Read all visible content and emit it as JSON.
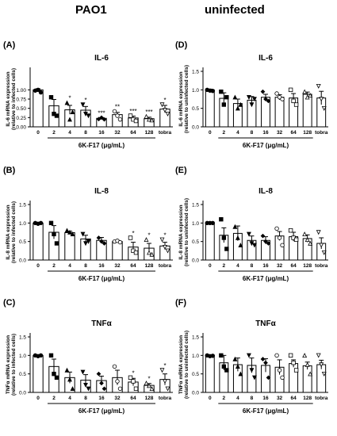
{
  "columns": {
    "left": "PAO1",
    "right": "uninfected"
  },
  "chart_data": [
    {
      "id": "A",
      "panel_label": "(A)",
      "title": "IL-6",
      "type": "bar",
      "ylabel": "IL-6 mRNA expression",
      "ylabel2": "(relative to infected cells)",
      "xlabel": "6K-F17 (μg/mL)",
      "categories": [
        "0",
        "2",
        "4",
        "8",
        "16",
        "32",
        "64",
        "128",
        "tobra"
      ],
      "values": [
        1.0,
        0.57,
        0.46,
        0.45,
        0.23,
        0.33,
        0.24,
        0.22,
        0.48
      ],
      "errors": [
        0.03,
        0.17,
        0.12,
        0.1,
        0.02,
        0.06,
        0.05,
        0.04,
        0.1
      ],
      "points": [
        [
          0.98,
          1.0,
          0.93
        ],
        [
          0.8,
          0.35,
          0.3
        ],
        [
          0.65,
          0.2,
          0.4
        ],
        [
          0.6,
          0.35,
          0.3
        ],
        [
          0.21,
          0.25,
          0.2
        ],
        [
          0.42,
          0.3,
          0.2
        ],
        [
          0.3,
          0.2,
          0.16
        ],
        [
          0.28,
          0.2,
          0.18
        ],
        [
          0.6,
          0.45,
          0.35
        ]
      ],
      "sig": [
        "",
        "",
        "*",
        "*",
        "***",
        "**",
        "***",
        "***",
        "*"
      ],
      "yticks": [
        0.0,
        0.25,
        0.5,
        0.75,
        1.0
      ],
      "ylim": [
        0,
        1.5
      ]
    },
    {
      "id": "B",
      "panel_label": "(B)",
      "title": "IL-8",
      "type": "bar",
      "ylabel": "IL-8 mRNA expression",
      "ylabel2": "(relative to infected cells)",
      "xlabel": "6K-F17 (μg/mL)",
      "categories": [
        "0",
        "2",
        "4",
        "8",
        "16",
        "32",
        "64",
        "128",
        "tobra"
      ],
      "values": [
        1.0,
        0.75,
        0.74,
        0.57,
        0.53,
        0.5,
        0.35,
        0.32,
        0.38
      ],
      "errors": [
        0.02,
        0.18,
        0.04,
        0.1,
        0.08,
        0.03,
        0.13,
        0.13,
        0.1
      ],
      "points": [
        [
          1.0,
          0.98,
          1.0
        ],
        [
          1.0,
          0.7,
          0.45
        ],
        [
          0.8,
          0.75,
          0.7
        ],
        [
          0.7,
          0.45,
          0.5
        ],
        [
          0.6,
          0.5,
          0.45
        ],
        [
          0.5,
          0.52,
          0.48
        ],
        [
          0.6,
          0.25,
          0.2
        ],
        [
          0.55,
          0.2,
          0.15
        ],
        [
          0.55,
          0.35,
          0.25
        ]
      ],
      "sig": [
        "",
        "",
        "",
        "",
        "",
        "",
        "*",
        "*",
        "*"
      ],
      "yticks": [
        0.0,
        0.5,
        1.0,
        1.5
      ],
      "ylim": [
        0,
        1.5
      ]
    },
    {
      "id": "C",
      "panel_label": "(C)",
      "title": "TNFα",
      "type": "bar",
      "ylabel": "TNFα mRNA expression",
      "ylabel2": "(relative to infected cells)",
      "xlabel": "6K-F17 (μg/mL)",
      "categories": [
        "0",
        "2",
        "4",
        "8",
        "16",
        "32",
        "64",
        "128",
        "tobra"
      ],
      "values": [
        1.0,
        0.7,
        0.4,
        0.33,
        0.32,
        0.4,
        0.28,
        0.19,
        0.35
      ],
      "errors": [
        0.02,
        0.2,
        0.15,
        0.15,
        0.12,
        0.2,
        0.1,
        0.05,
        0.15
      ],
      "points": [
        [
          1.0,
          0.98,
          1.0
        ],
        [
          1.0,
          0.5,
          0.4
        ],
        [
          0.6,
          0.35,
          0.1
        ],
        [
          0.55,
          0.2,
          0.1
        ],
        [
          0.5,
          0.25,
          0.1
        ],
        [
          0.7,
          0.3,
          0.1
        ],
        [
          0.4,
          0.3,
          0.1
        ],
        [
          0.25,
          0.18,
          0.1
        ],
        [
          0.6,
          0.3,
          0.1
        ]
      ],
      "sig": [
        "",
        "",
        "",
        "",
        "",
        "",
        "*",
        "*",
        "*"
      ],
      "yticks": [
        0.0,
        0.5,
        1.0,
        1.5
      ],
      "ylim": [
        0,
        1.5
      ]
    },
    {
      "id": "D",
      "panel_label": "(D)",
      "title": "IL-6",
      "type": "bar",
      "ylabel": "IL-6 mRNA expression",
      "ylabel2": "(relative to uninfected cells)",
      "xlabel": "6K-F17 (μg/mL)",
      "categories": [
        "0",
        "2",
        "4",
        "8",
        "16",
        "32",
        "64",
        "128",
        "tobra"
      ],
      "values": [
        1.0,
        0.77,
        0.63,
        0.72,
        0.8,
        0.8,
        0.78,
        0.88,
        0.78
      ],
      "errors": [
        0.02,
        0.15,
        0.12,
        0.1,
        0.08,
        0.07,
        0.12,
        0.06,
        0.18
      ],
      "points": [
        [
          1.0,
          0.98,
          0.97
        ],
        [
          0.95,
          0.6,
          0.8
        ],
        [
          0.8,
          0.5,
          0.6
        ],
        [
          0.8,
          0.6,
          0.75
        ],
        [
          0.95,
          0.75,
          0.7
        ],
        [
          0.9,
          0.8,
          0.75
        ],
        [
          1.0,
          0.7,
          0.6
        ],
        [
          0.95,
          0.8,
          0.85
        ],
        [
          1.1,
          0.75,
          0.5
        ]
      ],
      "sig": [
        "",
        "",
        "",
        "",
        "",
        "",
        "",
        "",
        ""
      ],
      "yticks": [
        0.0,
        0.5,
        1.0,
        1.5
      ],
      "ylim": [
        0,
        1.5
      ]
    },
    {
      "id": "E",
      "panel_label": "(E)",
      "title": "IL-8",
      "type": "bar",
      "ylabel": "IL-8 mRNA expression",
      "ylabel2": "(relative to uninfected cells)",
      "xlabel": "6K-F17 (μg/mL)",
      "categories": [
        "0",
        "2",
        "4",
        "8",
        "16",
        "32",
        "64",
        "128",
        "tobra"
      ],
      "values": [
        1.0,
        0.67,
        0.72,
        0.53,
        0.53,
        0.65,
        0.63,
        0.58,
        0.45
      ],
      "errors": [
        0.01,
        0.2,
        0.2,
        0.12,
        0.1,
        0.12,
        0.12,
        0.1,
        0.15
      ],
      "points": [
        [
          1.0,
          1.0,
          1.0
        ],
        [
          1.1,
          0.6,
          0.3
        ],
        [
          0.9,
          0.6,
          0.4
        ],
        [
          0.7,
          0.45,
          0.4
        ],
        [
          0.65,
          0.5,
          0.45
        ],
        [
          0.85,
          0.6,
          0.4
        ],
        [
          0.8,
          0.6,
          0.55
        ],
        [
          0.7,
          0.55,
          0.45
        ],
        [
          0.75,
          0.4,
          0.2
        ]
      ],
      "sig": [
        "",
        "",
        "",
        "",
        "",
        "",
        "",
        "",
        ""
      ],
      "yticks": [
        0.0,
        0.5,
        1.0,
        1.5
      ],
      "ylim": [
        0,
        1.5
      ]
    },
    {
      "id": "F",
      "panel_label": "(F)",
      "title": "TNFα",
      "type": "bar",
      "ylabel": "TNFα mRNA expression",
      "ylabel2": "(relative to uninfected cells)",
      "xlabel": "6K-F17 (μg/mL)",
      "categories": [
        "0",
        "2",
        "4",
        "8",
        "16",
        "32",
        "64",
        "128",
        "tobra"
      ],
      "values": [
        1.0,
        0.8,
        0.75,
        0.73,
        0.73,
        0.68,
        0.78,
        0.72,
        0.75
      ],
      "errors": [
        0.02,
        0.2,
        0.18,
        0.2,
        0.18,
        0.2,
        0.1,
        0.1,
        0.12
      ],
      "points": [
        [
          1.0,
          0.98,
          0.99
        ],
        [
          1.0,
          0.7,
          0.6
        ],
        [
          0.9,
          0.7,
          0.5
        ],
        [
          1.0,
          0.6,
          0.4
        ],
        [
          0.9,
          0.8,
          0.4
        ],
        [
          1.0,
          0.6,
          0.4
        ],
        [
          1.0,
          0.8,
          0.6
        ],
        [
          1.0,
          0.75,
          0.5
        ],
        [
          1.0,
          0.75,
          0.5
        ]
      ],
      "sig": [
        "",
        "",
        "",
        "",
        "",
        "",
        "",
        "",
        ""
      ],
      "yticks": [
        0.0,
        0.5,
        1.0,
        1.5
      ],
      "ylim": [
        0,
        1.5
      ]
    }
  ],
  "marker_shapes": [
    "circle-filled",
    "square-filled",
    "triangle-filled",
    "triangle-down-filled",
    "diamond-filled",
    "circle-open",
    "square-open",
    "triangle-open",
    "triangle-down-open"
  ]
}
